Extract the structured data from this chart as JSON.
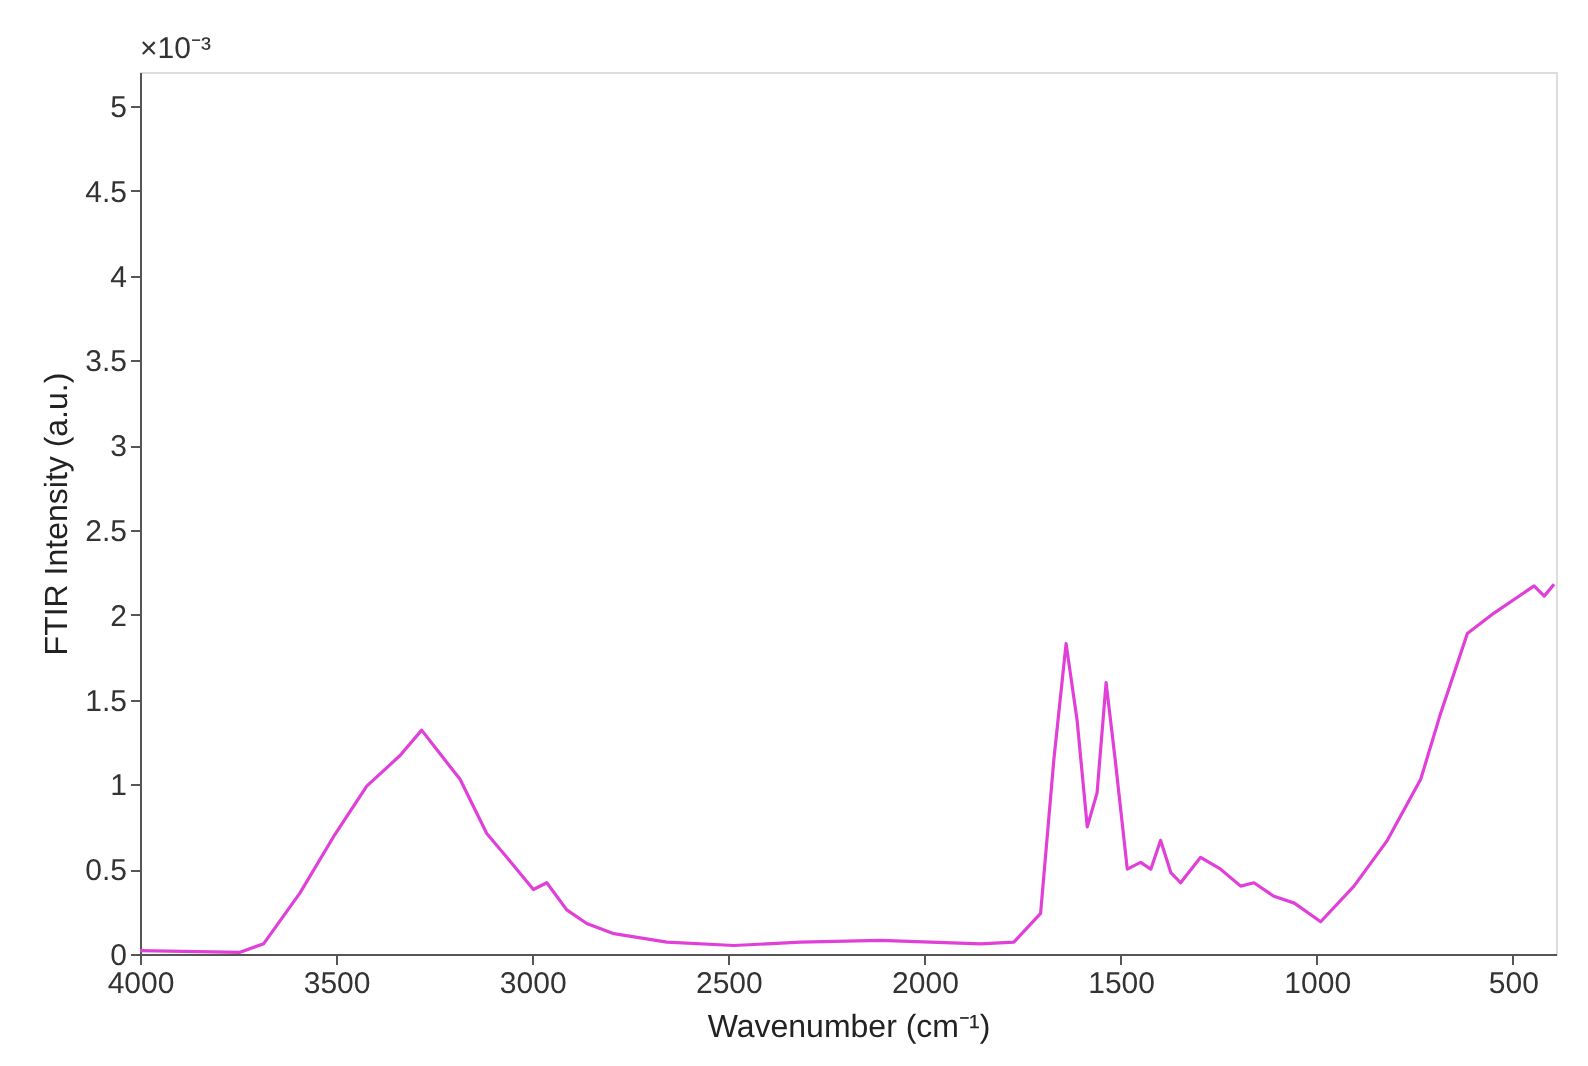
{
  "chart_data": {
    "type": "line",
    "xlabel": "Wavenumber (cm⁻¹)",
    "ylabel": "FTIR Intensity (a.u.)",
    "annotations": [
      "×10⁻³"
    ],
    "xlim": [
      4000,
      390
    ],
    "xticks": [
      4000,
      3500,
      3000,
      2500,
      2000,
      1500,
      1000,
      500
    ],
    "ylim": [
      0,
      5.2
    ],
    "yticks": [
      0,
      0.5,
      1,
      1.5,
      2,
      2.5,
      3,
      3.5,
      4,
      4.5,
      5
    ],
    "grid": false,
    "marker": "none",
    "line_style": "solid",
    "series": [
      {
        "color": "#e040d8",
        "x": [
          4000,
          3745,
          3685,
          3592,
          3507,
          3422,
          3337,
          3282,
          3235,
          3184,
          3116,
          3065,
          2997,
          2963,
          2912,
          2861,
          2792,
          2657,
          2486,
          2316,
          2112,
          1857,
          1772,
          1704,
          1670,
          1639,
          1611,
          1585,
          1560,
          1537,
          1514,
          1483,
          1449,
          1423,
          1398,
          1372,
          1347,
          1296,
          1245,
          1194,
          1160,
          1109,
          1057,
          990,
          905,
          820,
          735,
          684,
          616,
          548,
          446,
          420,
          395
        ],
        "values": [
          0.02,
          0.01,
          0.06,
          0.36,
          0.69,
          0.99,
          1.17,
          1.32,
          1.18,
          1.03,
          0.71,
          0.57,
          0.38,
          0.42,
          0.26,
          0.18,
          0.12,
          0.07,
          0.05,
          0.07,
          0.08,
          0.06,
          0.07,
          0.24,
          1.15,
          1.83,
          1.38,
          0.75,
          0.95,
          1.6,
          1.15,
          0.5,
          0.54,
          0.5,
          0.67,
          0.48,
          0.42,
          0.57,
          0.5,
          0.4,
          0.42,
          0.34,
          0.3,
          0.19,
          0.4,
          0.67,
          1.03,
          1.42,
          1.89,
          2.01,
          2.17,
          2.11,
          2.18
        ]
      }
    ]
  }
}
